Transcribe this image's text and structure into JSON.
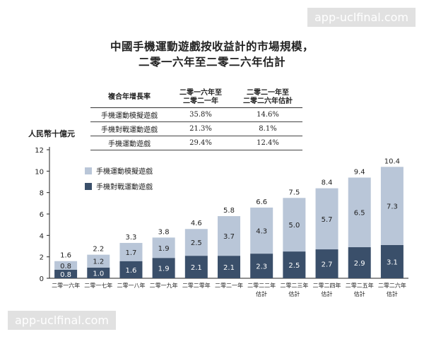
{
  "chart_data": {
    "type": "bar",
    "stacked": true,
    "title": "中國手機運動遊戲按收益計的市場規模，",
    "subtitle": "二零一六年至二零二六年估計",
    "ylabel": "人民幣十億元",
    "ylim": [
      0,
      12
    ],
    "yticks": [
      0,
      2,
      4,
      6,
      8,
      10,
      12
    ],
    "categories": [
      [
        "二零一六年"
      ],
      [
        "二零一七年"
      ],
      [
        "二零一八年"
      ],
      [
        "二零一九年"
      ],
      [
        "二零二零年"
      ],
      [
        "二零二一年"
      ],
      [
        "二零二二年",
        "估計"
      ],
      [
        "二零二三年",
        "估計"
      ],
      [
        "二零二四年",
        "估計"
      ],
      [
        "二零二五年",
        "估計"
      ],
      [
        "二零二六年",
        "估計"
      ]
    ],
    "series": [
      {
        "name": "手機對戰運動遊戲",
        "color": "#3a4f6a",
        "values": [
          0.8,
          1.0,
          1.6,
          1.9,
          2.1,
          2.1,
          2.3,
          2.5,
          2.7,
          2.9,
          3.1
        ]
      },
      {
        "name": "手機運動模擬遊戲",
        "color": "#b9c6d8",
        "values": [
          0.8,
          1.2,
          1.7,
          1.9,
          2.5,
          3.7,
          4.3,
          5.0,
          5.7,
          6.5,
          7.3
        ]
      }
    ],
    "totals": [
      1.6,
      2.2,
      3.3,
      3.8,
      4.6,
      5.8,
      6.6,
      7.5,
      8.4,
      9.4,
      10.4
    ],
    "legend": [
      {
        "label": "手機運動模擬遊戲",
        "color": "#b9c6d8"
      },
      {
        "label": "手機對戰運動遊戲",
        "color": "#3a4f6a"
      }
    ],
    "legend_position": "top-left",
    "grid": false
  },
  "growth_table": {
    "headers": [
      "複合年增長率",
      "二零一六年至\n二零二一年",
      "二零二一年至\n二零二六年估計"
    ],
    "rows": [
      [
        "手機運動模擬遊戲",
        "35.8%",
        "14.6%"
      ],
      [
        "手機對戰運動遊戲",
        "21.3%",
        "8.1%"
      ],
      [
        "手機運動遊戲",
        "29.4%",
        "12.4%"
      ]
    ]
  },
  "watermark": {
    "text": "app-uclfinal.com"
  }
}
